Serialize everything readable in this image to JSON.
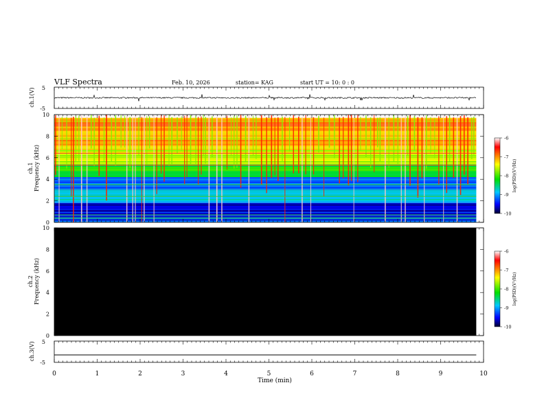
{
  "header": {
    "title": "VLF Spectra",
    "date": "Feb. 10, 2026",
    "station": "station= KAG",
    "start_time": "start  UT =   10: 0  : 0"
  },
  "chart_data": [
    {
      "type": "line",
      "name": "ch1-waveform",
      "ylabel": "ch.1(V)",
      "ylim": [
        -5,
        5
      ],
      "y_ticks": [
        "5",
        "-5"
      ],
      "baseline_value": 0,
      "noise_amplitude": 0.3
    },
    {
      "type": "heatmap",
      "name": "ch1-spectrogram",
      "ylabel": "ch.1\nFrequency (kHz)",
      "ylim": [
        0,
        10
      ],
      "y_ticks": [
        "0",
        "2",
        "4",
        "6",
        "8",
        "10"
      ],
      "xlim": [
        0,
        9.83
      ],
      "z_range": [
        -10,
        -6
      ],
      "colorbar_label": "log(PSD)(V²/Hz)",
      "colorbar_ticks": [
        "-6",
        "-7",
        "-8",
        "-9",
        "-10"
      ],
      "bands": [
        {
          "from_khz": 0,
          "to_khz": 0.6,
          "level": -9.3
        },
        {
          "from_khz": 0.6,
          "to_khz": 1.8,
          "level": -9.6
        },
        {
          "from_khz": 1.8,
          "to_khz": 3.0,
          "level": -8.9
        },
        {
          "from_khz": 3.0,
          "to_khz": 4.2,
          "level": -9.2
        },
        {
          "from_khz": 4.2,
          "to_khz": 5.4,
          "level": -8.2
        },
        {
          "from_khz": 5.4,
          "to_khz": 7.0,
          "level": -7.5
        },
        {
          "from_khz": 7.0,
          "to_khz": 8.5,
          "level": -7.2
        },
        {
          "from_khz": 8.5,
          "to_khz": 9.7,
          "level": -7.0
        }
      ]
    },
    {
      "type": "heatmap",
      "name": "ch2-spectrogram",
      "ylabel": "ch.2\nFrequency (kHz)",
      "ylim": [
        0,
        10
      ],
      "y_ticks": [
        "0",
        "2",
        "4",
        "6",
        "8",
        "10"
      ],
      "xlim": [
        0,
        9.83
      ],
      "z_range": [
        -10,
        -6
      ],
      "colorbar_label": "log(PSD)(V²/Hz)",
      "colorbar_ticks": [
        "-6",
        "-7",
        "-8",
        "-9",
        "-10"
      ],
      "fill": "no data"
    },
    {
      "type": "line",
      "name": "ch3-waveform",
      "ylabel": "ch.3(V)",
      "ylim": [
        -5,
        5
      ],
      "y_ticks": [
        "5",
        "-5"
      ],
      "baseline_value": -1.5
    }
  ],
  "x_axis": {
    "label": "Time (min)",
    "range": [
      0,
      10
    ],
    "ticks": [
      "0",
      "1",
      "2",
      "3",
      "4",
      "5",
      "6",
      "7",
      "8",
      "9",
      "10"
    ]
  }
}
